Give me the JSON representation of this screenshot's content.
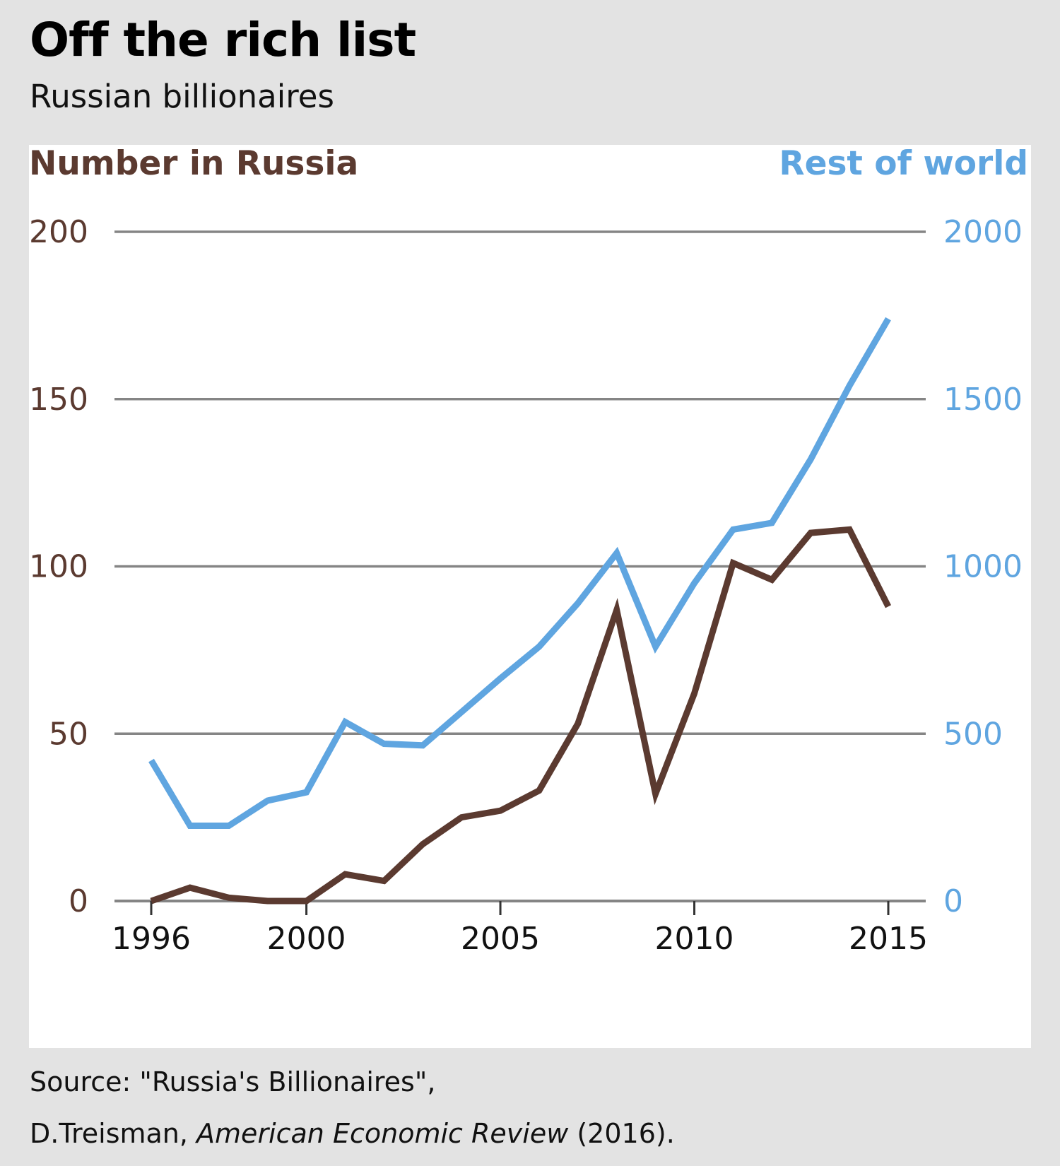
{
  "title": "Off the rich list",
  "subtitle": "Russian billionaires",
  "source": {
    "line1": "Source: \"Russia's Billionaires\",",
    "author": "D.Treisman, ",
    "journal": "American Economic Review",
    "year": " (2016)."
  },
  "colors": {
    "russia": "#5b3a30",
    "world": "#5fa5e0",
    "grid": "#858585",
    "panel": "#ffffff",
    "background": "#e3e3e3"
  },
  "chart_data": {
    "type": "line",
    "title": "Off the rich list",
    "subtitle": "Russian billionaires",
    "xlabel": "",
    "x": [
      1996,
      1997,
      1998,
      1999,
      2000,
      2001,
      2002,
      2003,
      2004,
      2005,
      2006,
      2007,
      2008,
      2009,
      2010,
      2011,
      2012,
      2013,
      2014,
      2015
    ],
    "xlim": [
      1996,
      2015
    ],
    "xticks": [
      1996,
      2000,
      2005,
      2010,
      2015
    ],
    "left_axis": {
      "label": "Number in Russia",
      "ylim": [
        0,
        200
      ],
      "ticks": [
        0,
        50,
        100,
        150,
        200
      ]
    },
    "right_axis": {
      "label": "Rest of world",
      "ylim": [
        0,
        2000
      ],
      "ticks": [
        0,
        500,
        1000,
        1500,
        2000
      ]
    },
    "grid": true,
    "series": [
      {
        "name": "Number in Russia",
        "axis": "left",
        "values": [
          0,
          4,
          1,
          0,
          0,
          8,
          6,
          17,
          25,
          27,
          33,
          53,
          87,
          32,
          62,
          101,
          96,
          110,
          111,
          88
        ]
      },
      {
        "name": "Rest of world",
        "axis": "right",
        "values": [
          420,
          225,
          225,
          300,
          325,
          535,
          470,
          465,
          565,
          665,
          760,
          890,
          1040,
          760,
          950,
          1110,
          1130,
          1320,
          1540,
          1740
        ]
      }
    ]
  }
}
